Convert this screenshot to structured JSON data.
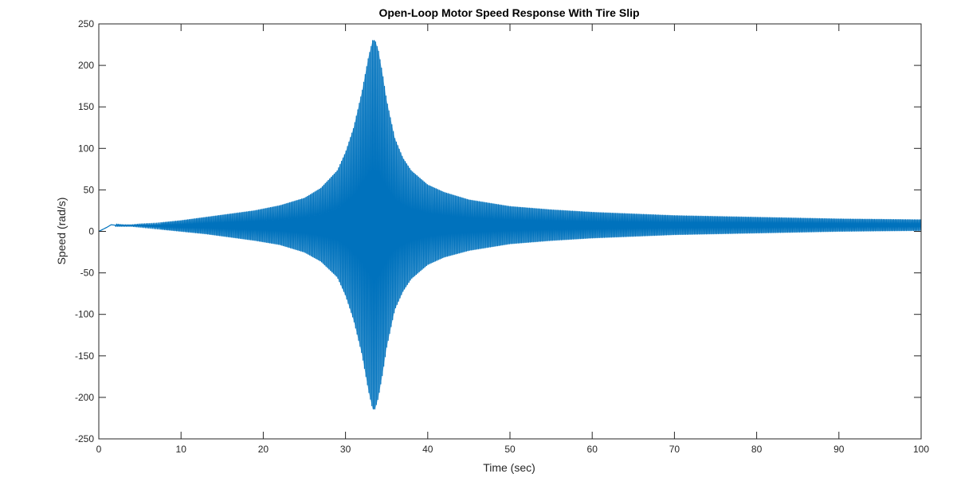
{
  "chart_data": {
    "type": "line",
    "title": "Open-Loop Motor Speed Response With Tire Slip",
    "xlabel": "Time (sec)",
    "ylabel": "Speed (rad/s)",
    "xlim": [
      0,
      100
    ],
    "ylim": [
      -250,
      250
    ],
    "xticks": [
      0,
      10,
      20,
      30,
      40,
      50,
      60,
      70,
      80,
      90,
      100
    ],
    "yticks": [
      -250,
      -200,
      -150,
      -100,
      -50,
      0,
      50,
      100,
      150,
      200,
      250
    ],
    "xtick_labels": [
      "0",
      "10",
      "20",
      "30",
      "40",
      "50",
      "60",
      "70",
      "80",
      "90",
      "100"
    ],
    "ytick_labels": [
      "-250",
      "-200",
      "-150",
      "-100",
      "-50",
      "0",
      "50",
      "100",
      "150",
      "200",
      "250"
    ],
    "grid": false,
    "box": true,
    "series": [
      {
        "color": "#0072BD",
        "form": "oscillation envelope (densely filled) with upper and lower bounds",
        "upper_envelope": {
          "x": [
            0,
            1,
            1.5,
            2,
            3,
            4,
            5,
            7,
            10,
            13,
            16,
            19,
            22,
            25,
            27,
            29,
            30,
            31,
            32,
            32.8,
            33.3,
            33.6,
            34,
            34.5,
            35,
            36,
            37,
            38,
            40,
            42,
            45,
            50,
            55,
            60,
            70,
            80,
            90,
            100
          ],
          "y": [
            0,
            7,
            10,
            9,
            8,
            8,
            9,
            10,
            13,
            17,
            21,
            25,
            31,
            40,
            52,
            73,
            95,
            125,
            168,
            210,
            230,
            230,
            218,
            190,
            158,
            112,
            88,
            73,
            56,
            47,
            38,
            30,
            26,
            23,
            19,
            17,
            15,
            14
          ]
        },
        "lower_envelope": {
          "x": [
            0,
            1,
            1.5,
            2,
            3,
            4,
            5,
            7,
            10,
            13,
            16,
            19,
            22,
            25,
            27,
            29,
            30,
            31,
            32,
            32.8,
            33.3,
            33.6,
            34,
            34.5,
            35,
            36,
            37,
            38,
            40,
            42,
            45,
            50,
            55,
            60,
            70,
            80,
            90,
            100
          ],
          "y": [
            0,
            3,
            6,
            6,
            6,
            6,
            5,
            3,
            0,
            -3,
            -7,
            -11,
            -16,
            -25,
            -36,
            -55,
            -77,
            -107,
            -148,
            -192,
            -214,
            -214,
            -200,
            -172,
            -140,
            -94,
            -72,
            -57,
            -40,
            -31,
            -23,
            -15,
            -11,
            -8,
            -4,
            -2,
            0,
            1
          ]
        }
      }
    ]
  }
}
